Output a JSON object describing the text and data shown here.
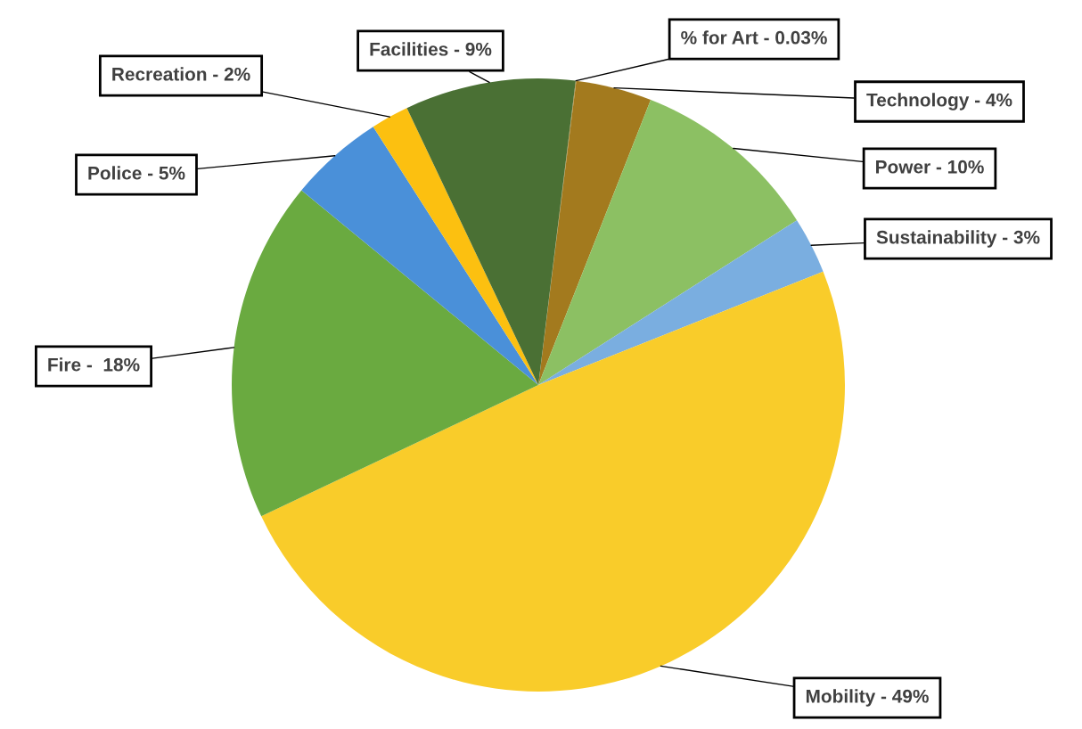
{
  "chart_data": {
    "type": "pie",
    "categories": [
      "% for Art - 0.03%",
      "Technology - 4%",
      "Power - 10%",
      "Sustainability - 3%",
      "Mobility - 49%",
      "Fire -  18%",
      "Police - 5%",
      "Recreation - 2%",
      "Facilities - 9%"
    ],
    "values": [
      0.03,
      4,
      10,
      3,
      49,
      18,
      5,
      2,
      9
    ],
    "colors": [
      "#b08a3a",
      "#a37a1e",
      "#8cc063",
      "#7aaee0",
      "#f9cc2a",
      "#6aaa40",
      "#4a90d9",
      "#fcc010",
      "#4a7034"
    ]
  }
}
